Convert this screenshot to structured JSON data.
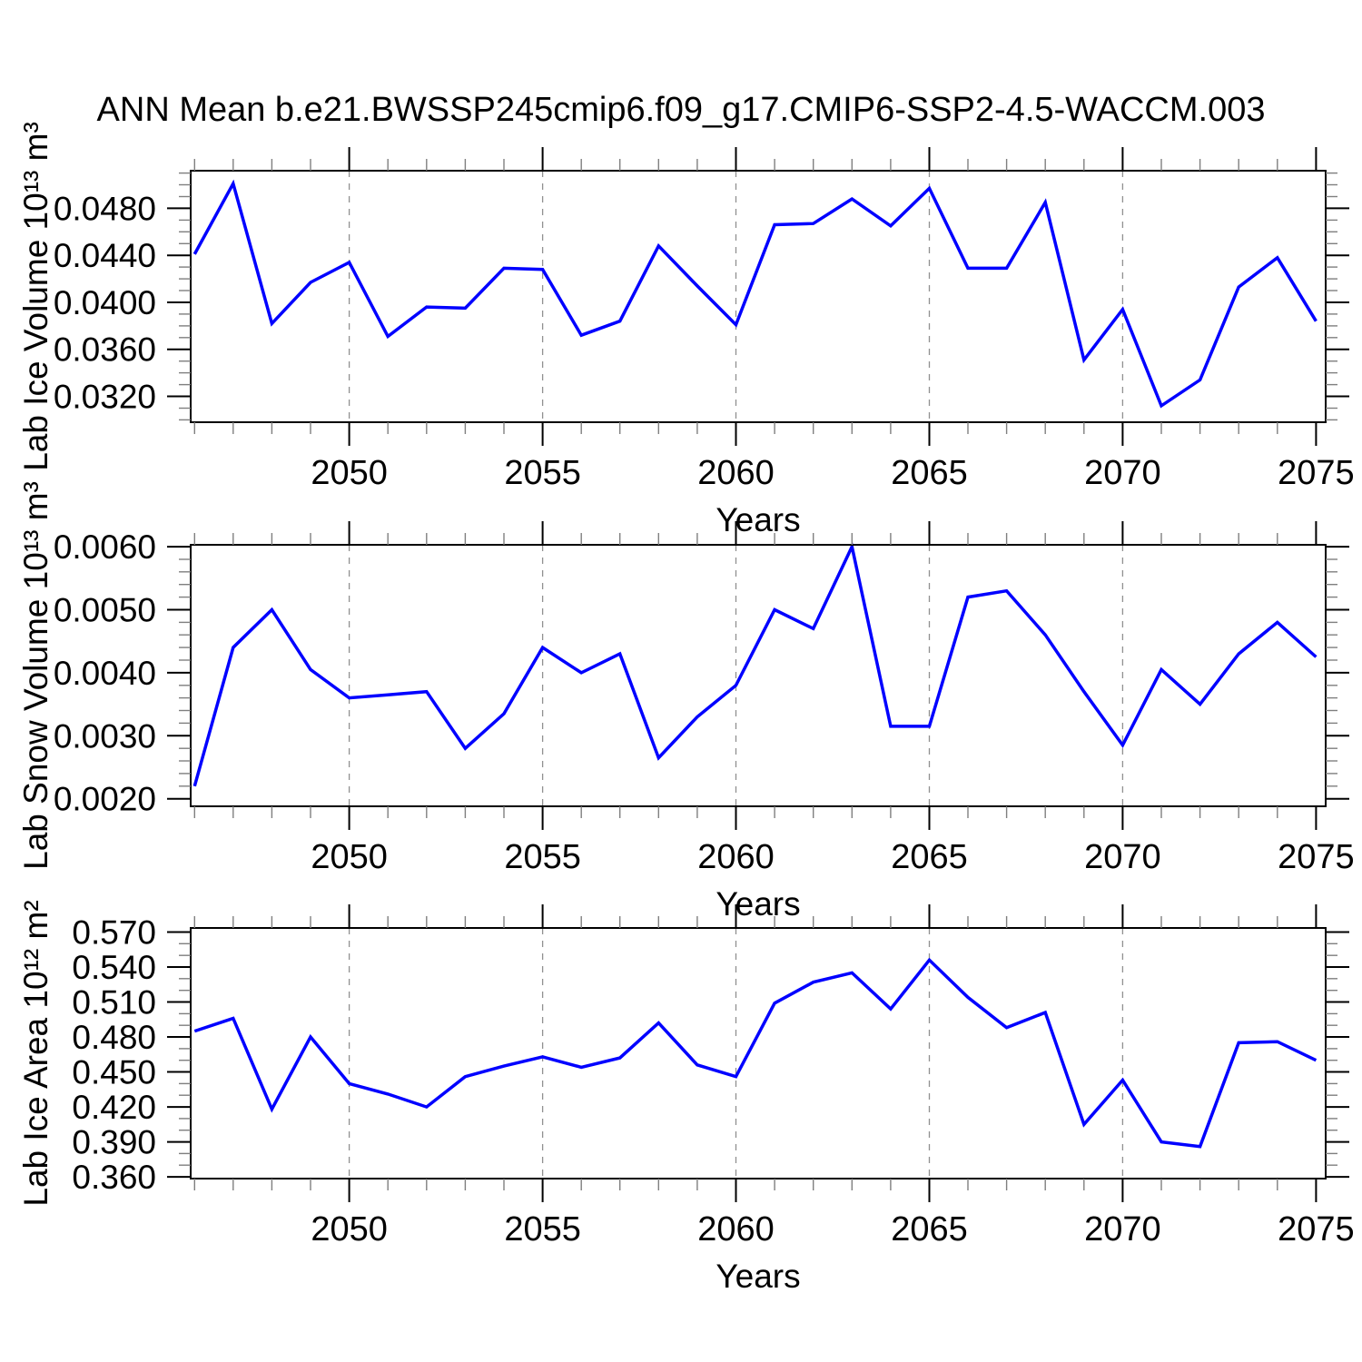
{
  "title": "ANN Mean b.e21.BWSSP245cmip6.f09_g17.CMIP6-SSP2-4.5-WACCM.003",
  "chart_data": {
    "type": "line",
    "title": "ANN Mean b.e21.BWSSP245cmip6.f09_g17.CMIP6-SSP2-4.5-WACCM.003",
    "xlabel": "Years",
    "line_color": "#0000ff",
    "grid_on": true,
    "xlim": [
      2045.9,
      2075.25
    ],
    "x": [
      2046,
      2047,
      2048,
      2049,
      2050,
      2051,
      2052,
      2053,
      2054,
      2055,
      2056,
      2057,
      2058,
      2059,
      2060,
      2061,
      2062,
      2063,
      2064,
      2065,
      2066,
      2067,
      2068,
      2069,
      2070,
      2071,
      2072,
      2073,
      2074,
      2075
    ],
    "xticks": [
      2050,
      2055,
      2060,
      2065,
      2070,
      2075
    ],
    "xtick_labels": [
      "2050",
      "2055",
      "2060",
      "2065",
      "2070",
      "2075"
    ],
    "grid_x": [
      2050,
      2055,
      2060,
      2065,
      2070
    ],
    "series": [
      {
        "id": "lab-ice-volume",
        "name": "Lab Ice Volume",
        "ylabel": "Lab Ice Volume 10¹³ m³",
        "units": "10^13 m^3",
        "ylim": [
          0.0298,
          0.0512
        ],
        "yticks": [
          0.032,
          0.036,
          0.04,
          0.044,
          0.048
        ],
        "ytick_labels": [
          "0.0320",
          "0.0360",
          "0.0400",
          "0.0440",
          "0.0480"
        ],
        "y_minor_step": 0.001,
        "values": [
          0.0441,
          0.0501,
          0.0382,
          0.0417,
          0.0434,
          0.0371,
          0.0396,
          0.0395,
          0.0429,
          0.0428,
          0.0372,
          0.0384,
          0.0448,
          0.0414,
          0.0381,
          0.0466,
          0.0467,
          0.0488,
          0.0465,
          0.0497,
          0.0429,
          0.0429,
          0.0485,
          0.0351,
          0.0394,
          0.0312,
          0.0334,
          0.0413,
          0.0438,
          0.0384
        ]
      },
      {
        "id": "lab-snow-volume",
        "name": "Lab Snow Volume",
        "ylabel": "Lab Snow Volume 10¹³ m³",
        "units": "10^13 m^3",
        "ylim": [
          0.00188,
          0.00603
        ],
        "yticks": [
          0.002,
          0.003,
          0.004,
          0.005,
          0.006
        ],
        "ytick_labels": [
          "0.0020",
          "0.0030",
          "0.0040",
          "0.0050",
          "0.0060"
        ],
        "y_minor_step": 0.0002,
        "values": [
          0.0022,
          0.0044,
          0.005,
          0.00405,
          0.0036,
          0.00365,
          0.0037,
          0.0028,
          0.00335,
          0.0044,
          0.004,
          0.0043,
          0.00265,
          0.0033,
          0.0038,
          0.005,
          0.0047,
          0.006,
          0.00315,
          0.00315,
          0.0052,
          0.0053,
          0.0046,
          0.0037,
          0.00285,
          0.00405,
          0.0035,
          0.0043,
          0.0048,
          0.00425
        ]
      },
      {
        "id": "lab-ice-area",
        "name": "Lab Ice Area",
        "ylabel": "Lab Ice Area 10¹² m²",
        "units": "10^12 m^2",
        "ylim": [
          0.3585,
          0.5735
        ],
        "yticks": [
          0.36,
          0.39,
          0.42,
          0.45,
          0.48,
          0.51,
          0.54,
          0.57
        ],
        "ytick_labels": [
          "0.360",
          "0.390",
          "0.420",
          "0.450",
          "0.480",
          "0.510",
          "0.540",
          "0.570"
        ],
        "y_minor_step": 0.01,
        "values": [
          0.485,
          0.496,
          0.418,
          0.48,
          0.44,
          0.431,
          0.42,
          0.446,
          0.455,
          0.463,
          0.454,
          0.462,
          0.492,
          0.456,
          0.446,
          0.509,
          0.527,
          0.535,
          0.504,
          0.546,
          0.514,
          0.488,
          0.501,
          0.405,
          0.443,
          0.39,
          0.386,
          0.475,
          0.476,
          0.46
        ]
      }
    ]
  }
}
